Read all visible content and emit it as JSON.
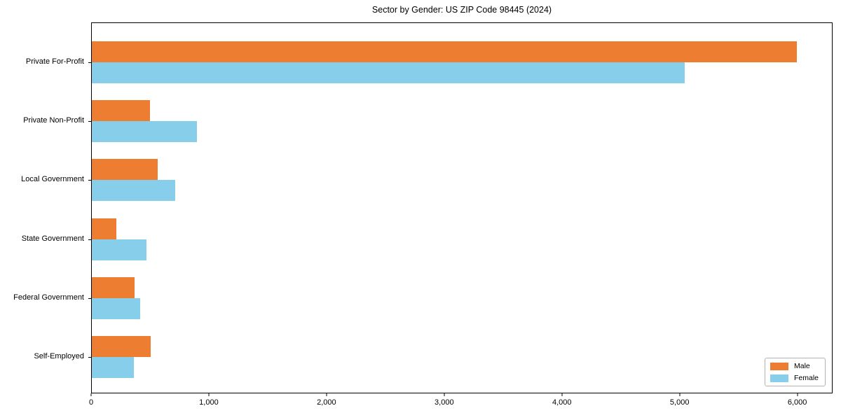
{
  "chart_data": {
    "type": "bar",
    "orientation": "horizontal",
    "title": "Sector by Gender: US ZIP Code 98445 (2024)",
    "categories": [
      "Private For-Profit",
      "Private Non-Profit",
      "Local Government",
      "State Government",
      "Federal Government",
      "Self-Employed"
    ],
    "series": [
      {
        "name": "Male",
        "color": "#ED7D31",
        "values": [
          6000,
          495,
          560,
          210,
          365,
          500
        ]
      },
      {
        "name": "Female",
        "color": "#87CEEB",
        "values": [
          5050,
          895,
          710,
          465,
          410,
          355
        ]
      }
    ],
    "xlabel": "",
    "ylabel": "",
    "xlim": [
      0,
      6300
    ],
    "x_ticks": [
      0,
      1000,
      2000,
      3000,
      4000,
      5000,
      6000
    ],
    "x_tick_labels": [
      "0",
      "1,000",
      "2,000",
      "3,000",
      "4,000",
      "5,000",
      "6,000"
    ],
    "grid": false,
    "legend": {
      "position": "lower right",
      "entries": [
        "Male",
        "Female"
      ]
    }
  }
}
